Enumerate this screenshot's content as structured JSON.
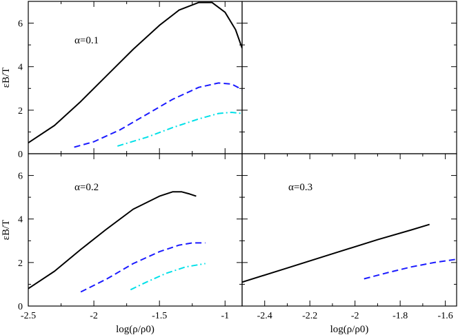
{
  "chart_data": [
    {
      "type": "line",
      "panel": "top-left",
      "annotation": "α=0.1",
      "xlim": [
        -2.5,
        -0.87
      ],
      "ylim": [
        0,
        7
      ],
      "xticks": [
        -2.5,
        -2,
        -1.5,
        -1
      ],
      "yticks": [
        0,
        2,
        4,
        6
      ],
      "xlabel": "",
      "ylabel": "εB/T",
      "series": [
        {
          "color": "#000000",
          "dash": "solid",
          "x": [
            -2.5,
            -2.3,
            -2.1,
            -1.9,
            -1.7,
            -1.5,
            -1.35,
            -1.2,
            -1.1,
            -1.0,
            -0.92,
            -0.87
          ],
          "y": [
            0.5,
            1.3,
            2.4,
            3.6,
            4.8,
            5.9,
            6.6,
            6.95,
            6.95,
            6.5,
            5.7,
            4.85
          ]
        },
        {
          "color": "#1a1aff",
          "dash": "dashed",
          "x": [
            -2.15,
            -2.0,
            -1.8,
            -1.6,
            -1.4,
            -1.2,
            -1.05,
            -0.95,
            -0.87
          ],
          "y": [
            0.3,
            0.55,
            1.1,
            1.8,
            2.5,
            3.05,
            3.25,
            3.2,
            2.95
          ]
        },
        {
          "color": "#00e0e8",
          "dash": "dashdot",
          "x": [
            -1.82,
            -1.6,
            -1.4,
            -1.2,
            -1.05,
            -0.95,
            -0.87
          ],
          "y": [
            0.35,
            0.75,
            1.2,
            1.6,
            1.85,
            1.9,
            1.85
          ]
        }
      ]
    },
    {
      "type": "line",
      "panel": "top-right",
      "annotation": "",
      "xlim": [
        0,
        1
      ],
      "ylim": [
        0,
        7
      ],
      "xticks": [],
      "yticks": [
        0,
        2,
        4,
        6
      ],
      "xlabel": "",
      "ylabel": "",
      "series": []
    },
    {
      "type": "line",
      "panel": "bottom-left",
      "annotation": "α=0.2",
      "xlim": [
        -2.5,
        -0.87
      ],
      "ylim": [
        0,
        7
      ],
      "xticks": [
        -2.5,
        -2,
        -1.5,
        -1
      ],
      "yticks": [
        0,
        2,
        4,
        6
      ],
      "xlabel": "log(ρ/ρ0)",
      "ylabel": "εB/T",
      "series": [
        {
          "color": "#000000",
          "dash": "solid",
          "x": [
            -2.5,
            -2.3,
            -2.1,
            -1.9,
            -1.7,
            -1.5,
            -1.4,
            -1.33,
            -1.27,
            -1.22
          ],
          "y": [
            0.8,
            1.6,
            2.6,
            3.55,
            4.45,
            5.05,
            5.25,
            5.25,
            5.15,
            5.05
          ]
        },
        {
          "color": "#1a1aff",
          "dash": "dashed",
          "x": [
            -2.1,
            -1.9,
            -1.7,
            -1.5,
            -1.35,
            -1.25,
            -1.15
          ],
          "y": [
            0.65,
            1.25,
            1.95,
            2.5,
            2.8,
            2.9,
            2.9
          ]
        },
        {
          "color": "#00e0e8",
          "dash": "dashdot",
          "x": [
            -1.72,
            -1.6,
            -1.45,
            -1.3,
            -1.15
          ],
          "y": [
            0.75,
            1.1,
            1.5,
            1.8,
            1.95
          ]
        }
      ]
    },
    {
      "type": "line",
      "panel": "bottom-right",
      "annotation": "α=0.3",
      "xlim": [
        -2.5,
        -1.55
      ],
      "ylim": [
        0,
        7
      ],
      "xticks": [
        -2.4,
        -2.2,
        -2,
        -1.8,
        -1.6
      ],
      "yticks": [
        0,
        2,
        4,
        6
      ],
      "xlabel": "log(ρ/ρ0)",
      "ylabel": "",
      "series": [
        {
          "color": "#000000",
          "dash": "solid",
          "x": [
            -2.5,
            -2.3,
            -2.1,
            -1.9,
            -1.75,
            -1.67
          ],
          "y": [
            1.1,
            1.75,
            2.4,
            3.05,
            3.5,
            3.75
          ]
        },
        {
          "color": "#1a1aff",
          "dash": "dashed",
          "x": [
            -1.96,
            -1.85,
            -1.75,
            -1.65,
            -1.55
          ],
          "y": [
            1.25,
            1.55,
            1.8,
            2.0,
            2.15
          ]
        }
      ]
    }
  ]
}
